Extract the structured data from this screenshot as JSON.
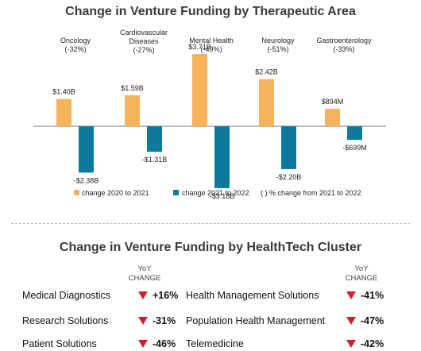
{
  "chart_data": {
    "type": "bar",
    "title": "Change in Venture Funding by Therapeutic Area",
    "categories": [
      "Oncology",
      "Cardiovascular Diseases",
      "Mental Health",
      "Neurology",
      "Gastroenterology"
    ],
    "category_labels": [
      [
        "Oncology",
        "(-32%)"
      ],
      [
        "Cardiovascular",
        "Diseases",
        "(-27%)"
      ],
      [
        "Mental Health",
        "(-49%)"
      ],
      [
        "Neurology",
        "(-51%)"
      ],
      [
        "Gastroenterology",
        "(-33%)"
      ]
    ],
    "series": [
      {
        "name": "change 2020 to 2021",
        "color": "#f6b35b",
        "values": [
          1.4,
          1.59,
          3.71,
          2.42,
          0.894
        ],
        "labels": [
          "$1.40B",
          "$1.59B",
          "$3.71B",
          "$2.42B",
          "$894M"
        ]
      },
      {
        "name": "change 2021 to 2022",
        "color": "#0b7a9c",
        "values": [
          -2.38,
          -1.31,
          -3.18,
          -2.2,
          -0.699
        ],
        "labels": [
          "-$2.38B",
          "-$1.31B",
          "-$3.18B",
          "-$2.20B",
          "-$699M"
        ]
      }
    ],
    "legend_note": "( ) % change from 2021 to 2022",
    "legend_position": "bottom",
    "grid": false
  },
  "cluster": {
    "title": "Change in Venture Funding by HealthTech Cluster",
    "header_line1": "YoY",
    "header_line2": "CHANGE",
    "icon": "down-arrow-icon",
    "icon_color": "#d0202a",
    "left": [
      {
        "name": "Medical Diagnostics",
        "value": "+16%"
      },
      {
        "name": "Research Solutions",
        "value": "-31%"
      },
      {
        "name": "Patient Solutions",
        "value": "-46%"
      }
    ],
    "right": [
      {
        "name": "Health Management Solutions",
        "value": "-41%"
      },
      {
        "name": "Population Health Management",
        "value": "-47%"
      },
      {
        "name": "Telemedicine",
        "value": "-42%"
      }
    ]
  }
}
